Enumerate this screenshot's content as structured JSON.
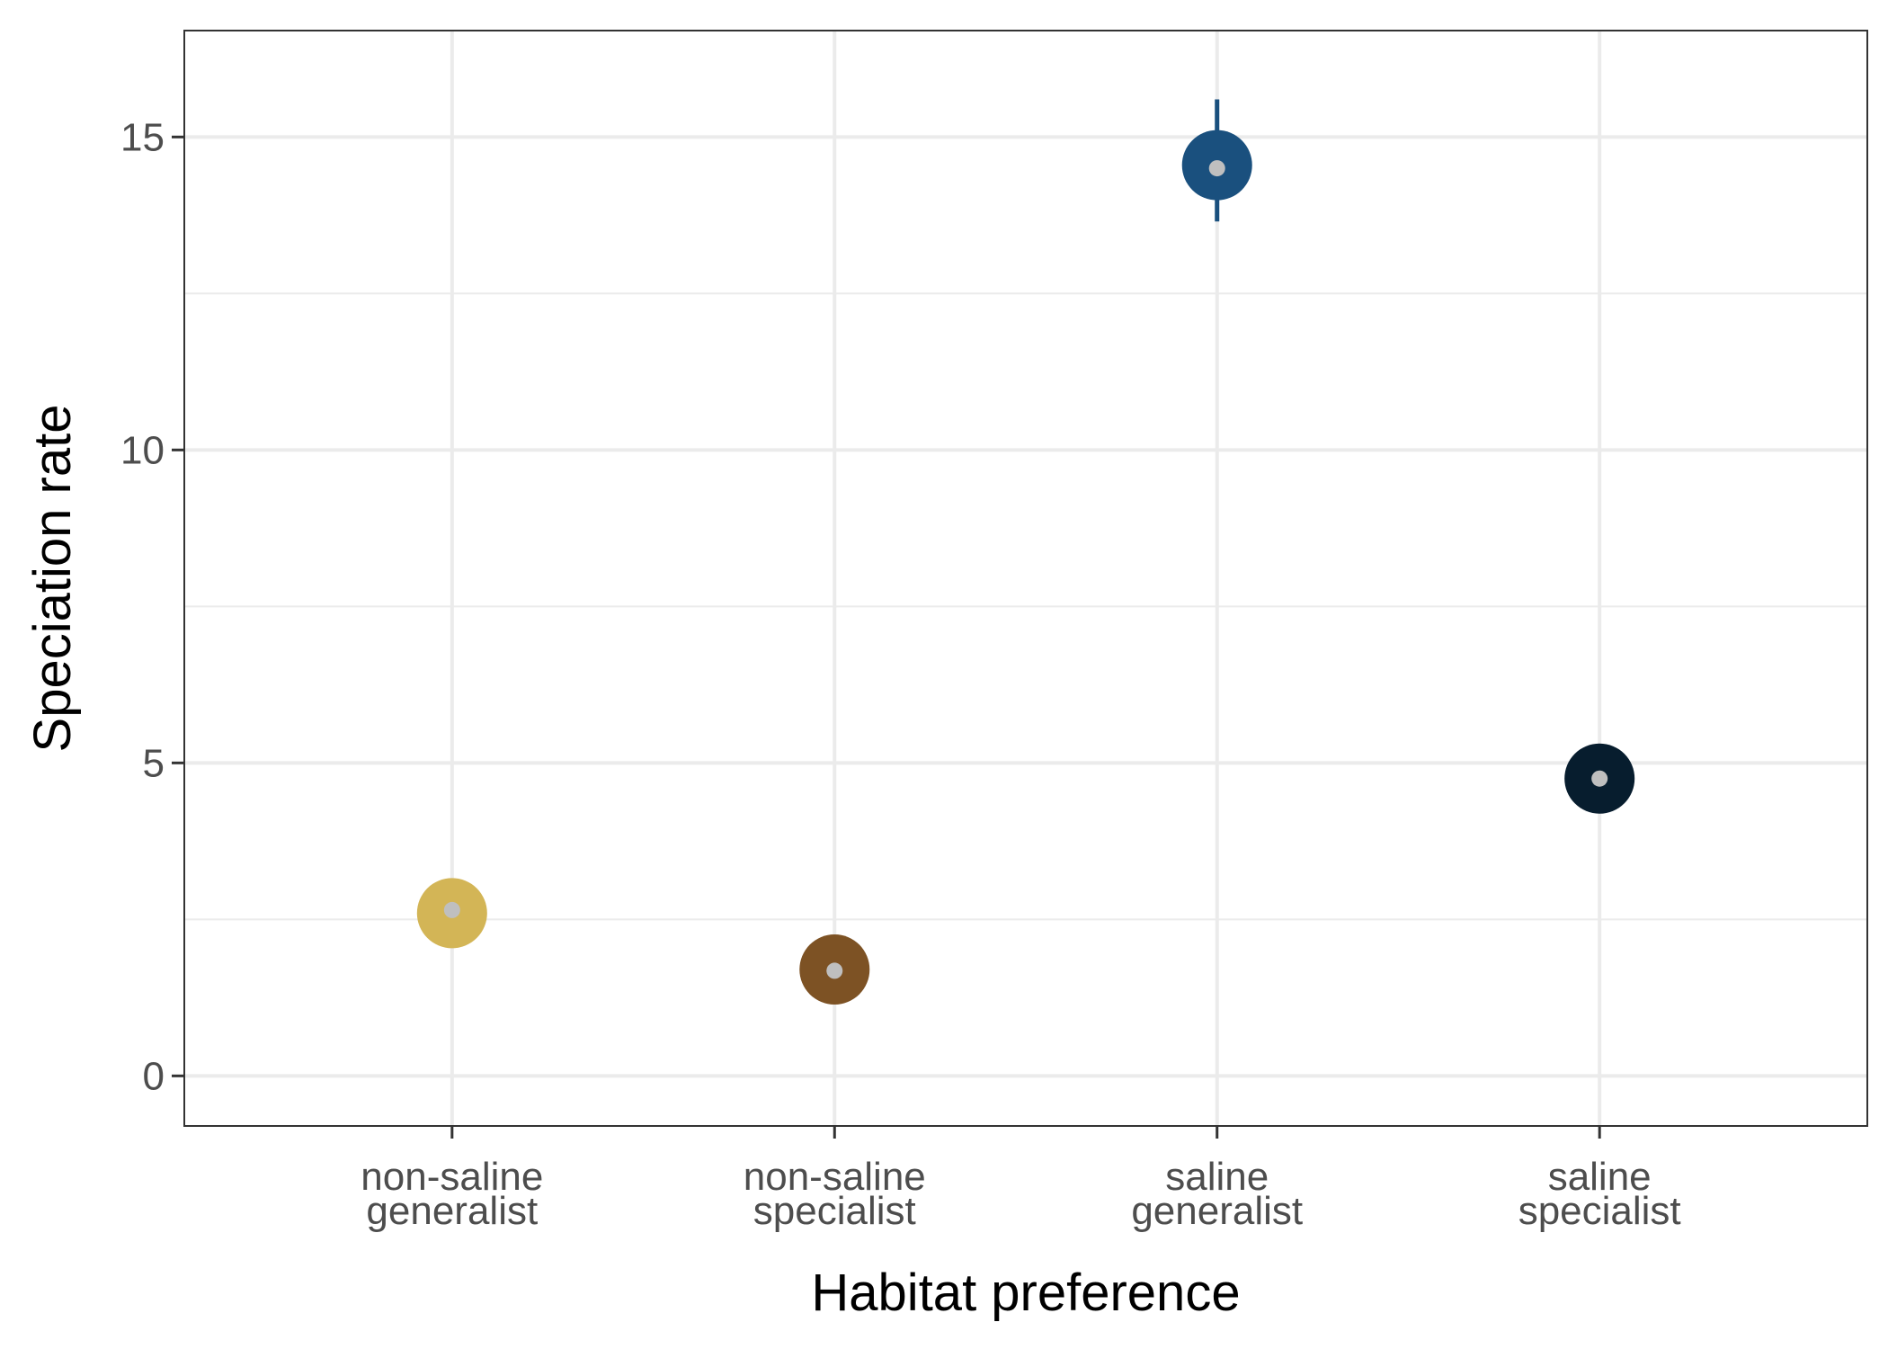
{
  "chart_data": {
    "type": "scatter",
    "xlabel": "Habitat preference",
    "ylabel": "Speciation rate",
    "ylim": [
      -0.8,
      16.7
    ],
    "yticks": [
      0,
      5,
      10,
      15
    ],
    "categories": [
      [
        "non-saline",
        "generalist"
      ],
      [
        "non-saline",
        "specialist"
      ],
      [
        "saline",
        "generalist"
      ],
      [
        "saline",
        "specialist"
      ]
    ],
    "points": [
      {
        "value": 2.6,
        "median": 2.65,
        "low": 2.55,
        "high": 2.7,
        "color": "#d3b556"
      },
      {
        "value": 1.7,
        "median": 1.68,
        "low": 1.6,
        "high": 1.8,
        "color": "#7d5224"
      },
      {
        "value": 14.55,
        "median": 14.5,
        "low": 13.65,
        "high": 15.6,
        "color": "#1a507e"
      },
      {
        "value": 4.75,
        "median": 4.75,
        "low": 4.65,
        "high": 4.85,
        "color": "#071d2e"
      }
    ],
    "grid": true,
    "inner_dot_color": "#bfbfbf"
  }
}
